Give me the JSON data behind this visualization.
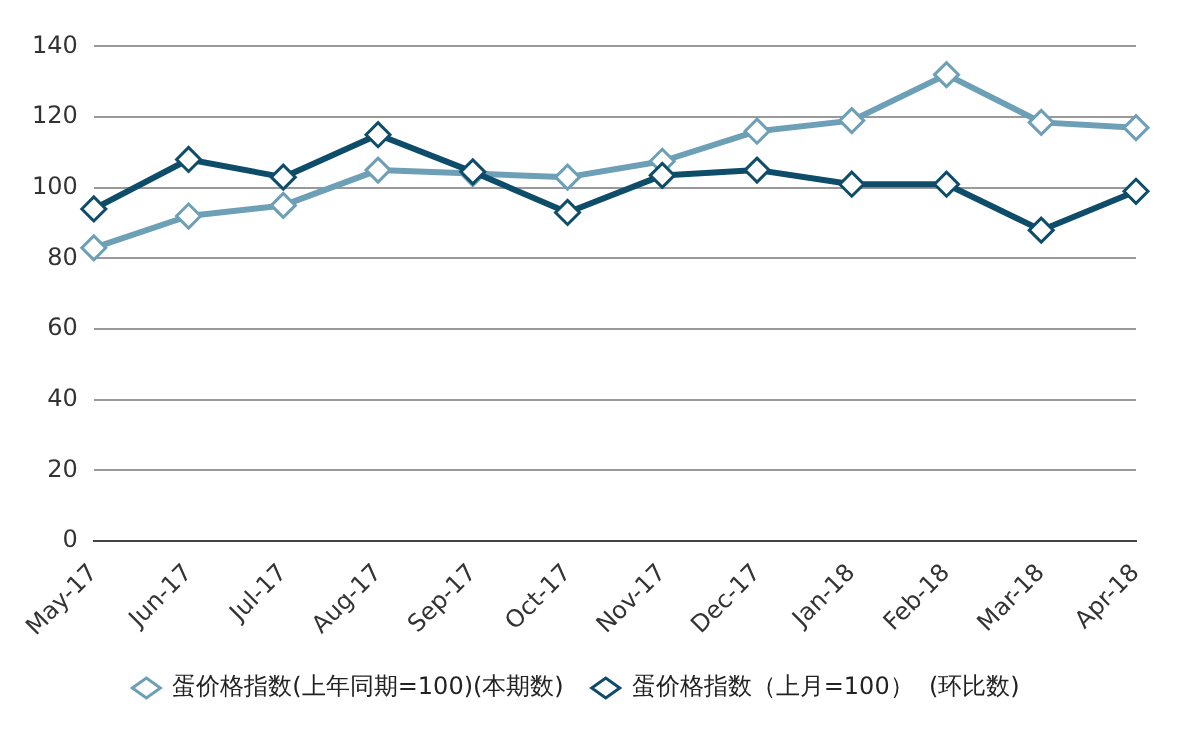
{
  "chart_data": {
    "type": "line",
    "categories": [
      "May-17",
      "Jun-17",
      "Jul-17",
      "Aug-17",
      "Sep-17",
      "Oct-17",
      "Nov-17",
      "Dec-17",
      "Jan-18",
      "Feb-18",
      "Mar-18",
      "Apr-18"
    ],
    "series": [
      {
        "name": "蛋价格指数(上年同期=100)(本期数)",
        "color": "#6d9fb6",
        "values": [
          83,
          92,
          95,
          105,
          104,
          103,
          107.5,
          116,
          119,
          132,
          118.5,
          117
        ]
      },
      {
        "name": "蛋价格指数（上月=100）  (环比数)",
        "color": "#0d4d6a",
        "values": [
          94,
          108,
          103,
          115,
          104.5,
          93,
          103.5,
          105,
          101,
          101,
          88,
          99
        ]
      }
    ],
    "ylim": [
      0,
      140
    ],
    "yticks": [
      0,
      20,
      40,
      60,
      80,
      100,
      120,
      140
    ],
    "grid": "y",
    "legend": "bottom",
    "marker": "diamond",
    "line_style": "solid"
  }
}
